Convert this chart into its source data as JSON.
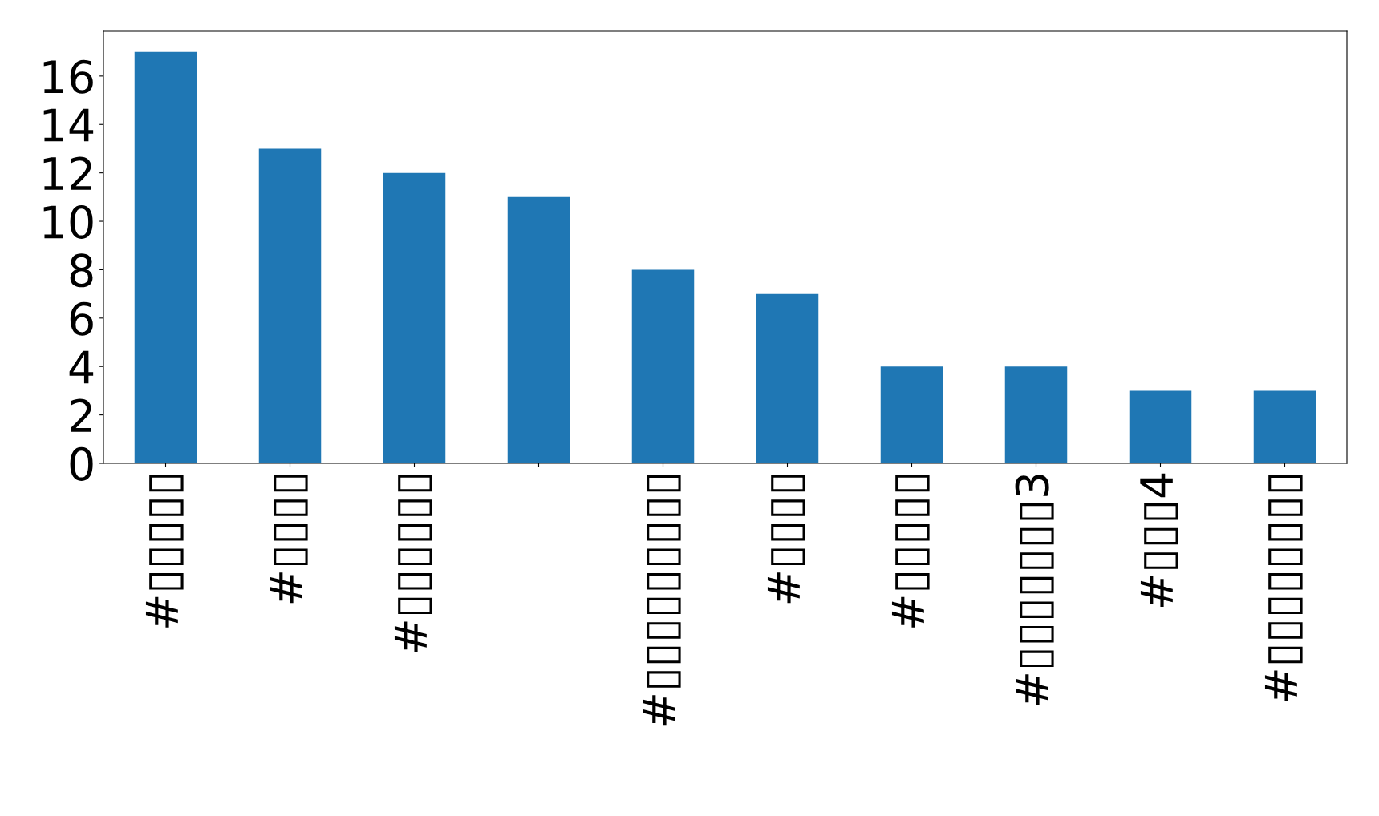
{
  "chart_data": {
    "type": "bar",
    "categories": [
      "#▯▯▯▯▯",
      "#▯▯▯▯",
      "#▯▯▯▯▯▯",
      null,
      "#▯▯▯▯▯▯▯▯▯",
      "#▯▯▯▯",
      "#▯▯▯▯▯",
      "#▯▯▯▯▯▯▯3",
      "#▯▯▯4",
      "#▯▯▯▯▯▯▯▯"
    ],
    "values": [
      17,
      13,
      12,
      11,
      8,
      7,
      4,
      4,
      3,
      3
    ],
    "color": "#1f77b4",
    "ylim": [
      0,
      17.85
    ],
    "yticks": [
      0,
      2,
      4,
      6,
      8,
      10,
      12,
      14,
      16
    ],
    "grid": false,
    "legend": false
  }
}
